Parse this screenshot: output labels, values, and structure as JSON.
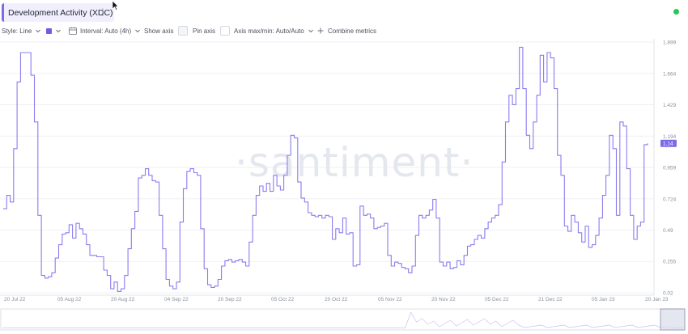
{
  "metric": {
    "title": "Development Activity (XDC)",
    "menu_icon": "kebab-menu-icon"
  },
  "toolbar": {
    "style_label": "Style: Line",
    "color_swatch": "#6c5ce7",
    "interval_label": "Interval: Auto (4h)",
    "show_axis_label": "Show axis",
    "pin_axis_label": "Pin axis",
    "axis_minmax_label": "Axis max/min: Auto/Auto",
    "combine_label": "Combine metrics"
  },
  "status": {
    "color": "#26c953"
  },
  "watermark": "·santiment·",
  "colors": {
    "line": "#8a7cf0",
    "last_label_bg": "#7b6be6",
    "grid": "#eceef3"
  },
  "chart_data": {
    "type": "line",
    "title": "",
    "series": [
      {
        "name": "",
        "color": "#8a7cf0"
      }
    ],
    "x_ticks": [
      "20 Jul 22",
      "05 Aug 22",
      "20 Aug 22",
      "04 Sep 22",
      "20 Sep 22",
      "05 Oct 22",
      "20 Oct 22",
      "05 Nov 22",
      "20 Nov 22",
      "05 Dec 22",
      "21 Dec 22",
      "05 Jan 23",
      "20 Jan 23"
    ],
    "y_ticks": [
      "0.02",
      "0.255",
      "0.49",
      "0.724",
      "0.959",
      "1.194",
      "1.429",
      "1.664",
      "1.899"
    ],
    "ylim": [
      0.02,
      1.899
    ],
    "last_value_label": "1.14",
    "values": [
      0.65,
      0.75,
      0.7,
      1.1,
      1.6,
      1.82,
      1.82,
      1.82,
      1.65,
      1.3,
      0.6,
      0.15,
      0.13,
      0.14,
      0.17,
      0.28,
      0.38,
      0.46,
      0.47,
      0.53,
      0.43,
      0.54,
      0.5,
      0.46,
      0.38,
      0.3,
      0.3,
      0.29,
      0.29,
      0.19,
      0.15,
      0.05,
      0.1,
      0.03,
      0.05,
      0.15,
      0.35,
      0.5,
      0.63,
      0.88,
      0.9,
      0.95,
      0.9,
      0.86,
      0.85,
      0.6,
      0.35,
      0.12,
      0.07,
      0.05,
      0.1,
      0.55,
      0.8,
      0.93,
      0.95,
      0.92,
      0.9,
      0.5,
      0.2,
      0.08,
      0.06,
      0.07,
      0.12,
      0.22,
      0.26,
      0.27,
      0.25,
      0.26,
      0.27,
      0.25,
      0.22,
      0.4,
      0.6,
      0.75,
      0.82,
      0.78,
      0.84,
      0.78,
      0.9,
      0.82,
      0.79,
      0.9,
      1.05,
      1.2,
      1.18,
      0.85,
      0.73,
      0.7,
      0.62,
      0.6,
      0.59,
      0.6,
      0.58,
      0.6,
      0.59,
      0.42,
      0.5,
      0.47,
      0.58,
      0.46,
      0.47,
      0.22,
      0.23,
      0.67,
      0.6,
      0.61,
      0.58,
      0.5,
      0.51,
      0.52,
      0.54,
      0.3,
      0.22,
      0.25,
      0.24,
      0.21,
      0.2,
      0.17,
      0.22,
      0.45,
      0.6,
      0.58,
      0.6,
      0.64,
      0.72,
      0.58,
      0.25,
      0.22,
      0.25,
      0.2,
      0.21,
      0.26,
      0.23,
      0.3,
      0.37,
      0.38,
      0.42,
      0.45,
      0.43,
      0.5,
      0.55,
      0.58,
      0.6,
      0.68,
      1.0,
      1.3,
      1.5,
      1.43,
      1.55,
      1.86,
      1.55,
      1.2,
      1.1,
      1.3,
      1.5,
      1.8,
      1.6,
      1.82,
      1.78,
      1.55,
      1.05,
      0.9,
      0.52,
      0.48,
      0.6,
      0.55,
      0.47,
      0.4,
      0.52,
      0.36,
      0.38,
      0.45,
      0.58,
      0.75,
      0.9,
      1.2,
      1.1,
      0.6,
      1.3,
      1.27,
      0.95,
      0.6,
      0.42,
      0.52,
      0.55,
      1.13,
      1.14
    ]
  }
}
